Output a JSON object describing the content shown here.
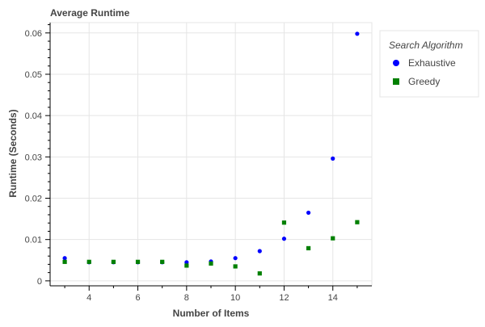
{
  "chart_data": {
    "type": "scatter",
    "title": "Average Runtime",
    "xlabel": "Number of Items",
    "ylabel": "Runtime (Seconds)",
    "xlim": [
      2.4,
      15.6
    ],
    "ylim": [
      -0.0012,
      0.0625
    ],
    "x_ticks": [
      4,
      6,
      8,
      10,
      12,
      14
    ],
    "y_ticks": [
      0,
      0.01,
      0.02,
      0.03,
      0.04,
      0.05,
      0.06
    ],
    "x_tick_labels": [
      "4",
      "6",
      "8",
      "10",
      "12",
      "14"
    ],
    "y_tick_labels": [
      "0",
      "0.01",
      "0.02",
      "0.03",
      "0.04",
      "0.05",
      "0.06"
    ],
    "grid": true,
    "legend": {
      "title": "Search Algorithm",
      "placement": "top-right-outside"
    },
    "series": [
      {
        "name": "Exhaustive",
        "marker": "circle",
        "color": "#0000ff",
        "x": [
          3,
          4,
          5,
          6,
          7,
          8,
          9,
          10,
          11,
          12,
          13,
          14,
          15
        ],
        "y": [
          0.0055,
          0.0045,
          0.0045,
          0.0045,
          0.0045,
          0.0045,
          0.0047,
          0.0055,
          0.0072,
          0.0102,
          0.0165,
          0.0296,
          0.0598
        ]
      },
      {
        "name": "Greedy",
        "marker": "square",
        "color": "#008000",
        "x": [
          3,
          4,
          5,
          6,
          7,
          8,
          9,
          10,
          11,
          12,
          13,
          14,
          15
        ],
        "y": [
          0.0046,
          0.0046,
          0.0046,
          0.0046,
          0.0046,
          0.0037,
          0.0042,
          0.0035,
          0.0018,
          0.0141,
          0.0079,
          0.0103,
          0.0142
        ]
      }
    ]
  }
}
